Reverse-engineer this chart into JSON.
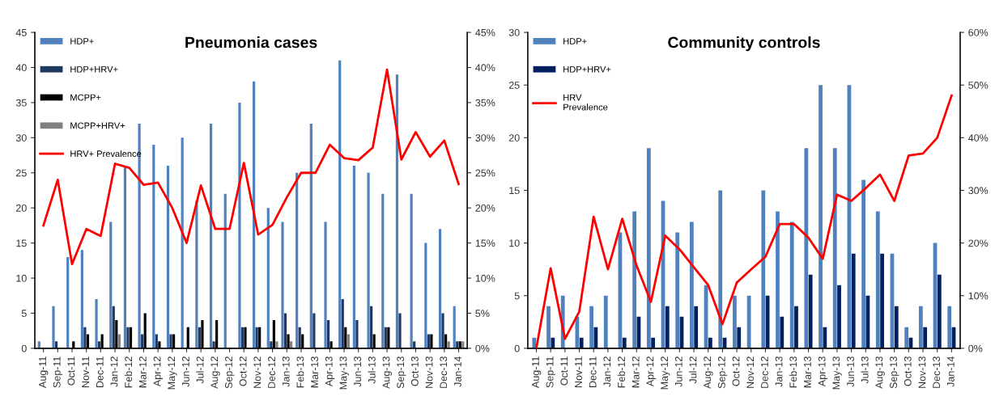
{
  "chart_data": [
    {
      "type": "bar",
      "title": "Pneumonia cases",
      "categories": [
        "Aug-11",
        "Sep-11",
        "Oct-11",
        "Nov-11",
        "Dec-11",
        "Jan-12",
        "Feb-12",
        "Mar-12",
        "Apr-12",
        "May-12",
        "Jun-12",
        "Jul-12",
        "Aug-12",
        "Sep-12",
        "Oct-12",
        "Nov-12",
        "Dec-12",
        "Jan-13",
        "Feb-13",
        "Mar-13",
        "Apr-13",
        "May-13",
        "Jun-13",
        "Jul-13",
        "Aug-13",
        "Sep-13",
        "Oct-13",
        "Nov-13",
        "Dec-13",
        "Jan-14"
      ],
      "series": [
        {
          "name": "HDP+",
          "color": "#4f81bd",
          "values": [
            1,
            6,
            13,
            14,
            7,
            18,
            26,
            32,
            29,
            26,
            30,
            21,
            32,
            22,
            35,
            38,
            20,
            18,
            25,
            32,
            18,
            41,
            26,
            25,
            22,
            39,
            22,
            15,
            17,
            6
          ]
        },
        {
          "name": "HDP+HRV+",
          "color": "#1f3864",
          "values": [
            0,
            1,
            0,
            3,
            1,
            6,
            3,
            2,
            2,
            2,
            0,
            3,
            1,
            0,
            3,
            3,
            1,
            5,
            3,
            5,
            4,
            7,
            4,
            6,
            3,
            5,
            1,
            2,
            5,
            1
          ]
        },
        {
          "name": "MCPP+",
          "color": "#000000",
          "values": [
            0,
            0,
            1,
            2,
            2,
            4,
            3,
            5,
            1,
            2,
            3,
            4,
            4,
            0,
            3,
            3,
            4,
            2,
            2,
            0,
            1,
            3,
            0,
            2,
            3,
            0,
            0,
            2,
            2,
            1
          ]
        },
        {
          "name": "MCPP+HRV+",
          "color": "#808080",
          "values": [
            0,
            0,
            0,
            0,
            0,
            2,
            0,
            0,
            0,
            0,
            0,
            0,
            0,
            0,
            0,
            0,
            1,
            1,
            0,
            0,
            0,
            2,
            0,
            0,
            0,
            0,
            0,
            0,
            1,
            1
          ]
        },
        {
          "name": "HRV+ Prevalence",
          "type": "line",
          "axis": "y2",
          "color": "#ff0000",
          "values": [
            17.5,
            24,
            12,
            17,
            16,
            26.3,
            25.7,
            23.3,
            23.6,
            20,
            15,
            23.2,
            17,
            17,
            26.4,
            16.2,
            17.6,
            21.5,
            25,
            25,
            29,
            27.1,
            26.8,
            28.6,
            39.7,
            26.9,
            30.8,
            27.3,
            29.6,
            23.4
          ]
        }
      ],
      "ylim": [
        0,
        45
      ],
      "yticks": [
        0,
        5,
        10,
        15,
        20,
        25,
        30,
        35,
        40,
        45
      ],
      "y2lim": [
        0,
        45
      ],
      "y2ticks": [
        {
          "value": 0,
          "label": "0%"
        },
        {
          "value": 5,
          "label": "5%"
        },
        {
          "value": 10,
          "label": "10%"
        },
        {
          "value": 15,
          "label": "15%"
        },
        {
          "value": 20,
          "label": "20%"
        },
        {
          "value": 25,
          "label": "25%"
        },
        {
          "value": 30,
          "label": "30%"
        },
        {
          "value": 35,
          "label": "35%"
        },
        {
          "value": 40,
          "label": "40%"
        },
        {
          "value": 45,
          "label": "45%"
        }
      ],
      "legend": "top left",
      "grid": false
    },
    {
      "type": "bar",
      "title": "Community controls",
      "categories": [
        "Aug-11",
        "Sep-11",
        "Oct-11",
        "Nov-11",
        "Dec-11",
        "Jan-12",
        "Feb-12",
        "Mar-12",
        "Apr-12",
        "May-12",
        "Jun-12",
        "Jul-12",
        "Aug-12",
        "Sep-12",
        "Oct-12",
        "Nov-12",
        "Dec-12",
        "Jan-13",
        "Feb-13",
        "Mar-13",
        "Apr-13",
        "May-13",
        "Jun-13",
        "Jul-13",
        "Aug-13",
        "Sep-13",
        "Oct-13",
        "Nov-13",
        "Dec-13",
        "Jan-14"
      ],
      "series": [
        {
          "name": "HDP+",
          "color": "#4f81bd",
          "values": [
            1,
            4,
            5,
            3,
            4,
            5,
            11,
            13,
            19,
            14,
            11,
            12,
            6,
            15,
            5,
            5,
            15,
            13,
            12,
            19,
            25,
            19,
            25,
            16,
            13,
            9,
            2,
            4,
            10,
            4
          ]
        },
        {
          "name": "HDP+HRV+",
          "color": "#002060",
          "values": [
            0,
            1,
            0,
            1,
            2,
            0,
            1,
            3,
            1,
            4,
            3,
            4,
            1,
            1,
            2,
            0,
            5,
            3,
            4,
            7,
            2,
            6,
            9,
            5,
            9,
            4,
            1,
            2,
            7,
            2
          ]
        },
        {
          "name": "HRV\nPrevalence",
          "type": "line",
          "axis": "y2",
          "color": "#ff0000",
          "values": [
            0,
            15.2,
            1.8,
            7,
            25,
            15,
            24.6,
            15.7,
            8.8,
            21.4,
            18.8,
            15.4,
            12,
            4.6,
            12.5,
            15,
            17.4,
            23.6,
            23.6,
            21,
            17,
            29.2,
            28,
            30.4,
            33,
            28,
            36.6,
            37,
            40,
            48
          ]
        }
      ],
      "ylim": [
        0,
        30
      ],
      "yticks": [
        0,
        5,
        10,
        15,
        20,
        25,
        30
      ],
      "y2lim": [
        0,
        60
      ],
      "y2ticks": [
        {
          "value": 0,
          "label": "0%"
        },
        {
          "value": 10,
          "label": "10%"
        },
        {
          "value": 20,
          "label": "20%"
        },
        {
          "value": 30,
          "label": "30%"
        },
        {
          "value": 40,
          "label": "40%"
        },
        {
          "value": 50,
          "label": "50%"
        },
        {
          "value": 60,
          "label": "60%"
        }
      ],
      "legend": "top left",
      "grid": false
    }
  ]
}
